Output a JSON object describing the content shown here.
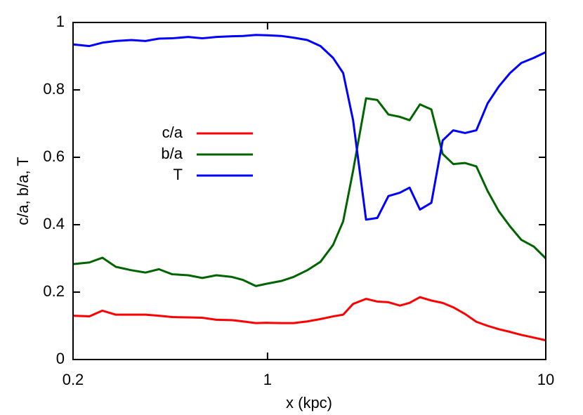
{
  "chart_data": {
    "type": "line",
    "xlabel": "x (kpc)",
    "ylabel": "c/a, b/a, T",
    "xscale": "log",
    "xlim": [
      0.2,
      10
    ],
    "xticks": [
      0.2,
      1,
      10
    ],
    "ylim": [
      0,
      1
    ],
    "yticks": [
      0,
      0.2,
      0.4,
      0.6,
      0.8,
      1
    ],
    "legend": "center-left",
    "x": [
      0.2,
      0.229,
      0.255,
      0.285,
      0.324,
      0.364,
      0.407,
      0.454,
      0.519,
      0.583,
      0.655,
      0.745,
      0.817,
      0.908,
      0.995,
      1.12,
      1.24,
      1.39,
      1.55,
      1.72,
      1.87,
      2.03,
      2.26,
      2.48,
      2.72,
      2.99,
      3.24,
      3.53,
      3.88,
      4.26,
      4.65,
      5.13,
      5.63,
      6.18,
      6.78,
      7.44,
      8.17,
      9.06,
      10
    ],
    "series": [
      {
        "name": "c/a",
        "color": "#ff0000",
        "values": [
          0.13,
          0.128,
          0.145,
          0.133,
          0.133,
          0.133,
          0.13,
          0.126,
          0.125,
          0.124,
          0.118,
          0.117,
          0.113,
          0.108,
          0.109,
          0.108,
          0.108,
          0.113,
          0.12,
          0.128,
          0.133,
          0.165,
          0.18,
          0.172,
          0.17,
          0.16,
          0.168,
          0.185,
          0.175,
          0.168,
          0.155,
          0.135,
          0.112,
          0.1,
          0.09,
          0.082,
          0.073,
          0.065,
          0.057
        ]
      },
      {
        "name": "b/a",
        "color": "#006400",
        "values": [
          0.283,
          0.288,
          0.302,
          0.275,
          0.265,
          0.258,
          0.268,
          0.253,
          0.25,
          0.242,
          0.25,
          0.245,
          0.236,
          0.218,
          0.225,
          0.233,
          0.245,
          0.265,
          0.29,
          0.34,
          0.41,
          0.56,
          0.775,
          0.77,
          0.727,
          0.72,
          0.71,
          0.757,
          0.742,
          0.61,
          0.58,
          0.583,
          0.573,
          0.5,
          0.44,
          0.395,
          0.355,
          0.335,
          0.3
        ]
      },
      {
        "name": "T",
        "color": "#0000ff",
        "values": [
          0.935,
          0.93,
          0.94,
          0.945,
          0.948,
          0.945,
          0.952,
          0.953,
          0.957,
          0.953,
          0.957,
          0.959,
          0.96,
          0.963,
          0.962,
          0.96,
          0.955,
          0.948,
          0.93,
          0.895,
          0.85,
          0.71,
          0.415,
          0.42,
          0.485,
          0.495,
          0.51,
          0.445,
          0.465,
          0.65,
          0.68,
          0.672,
          0.68,
          0.76,
          0.81,
          0.85,
          0.88,
          0.895,
          0.912
        ]
      }
    ]
  }
}
